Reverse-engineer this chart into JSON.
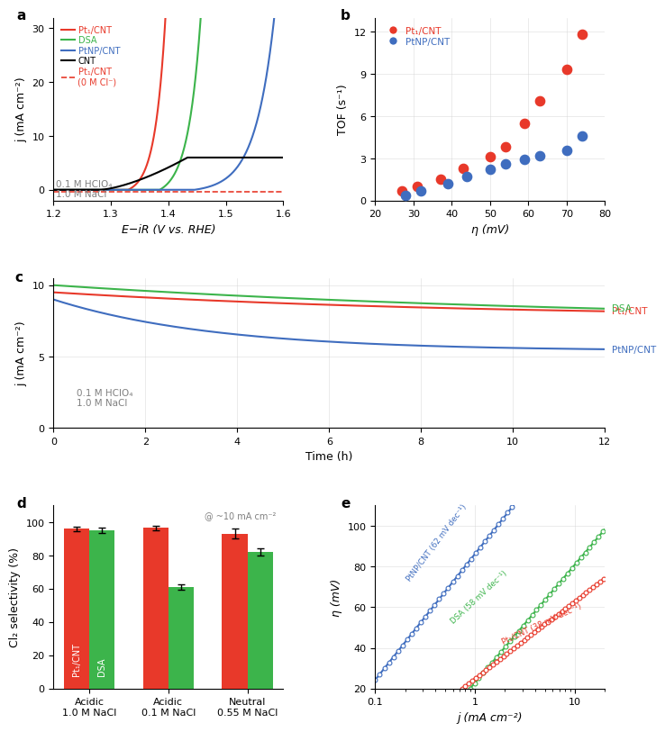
{
  "panel_a": {
    "xlabel": "E−iR (V vs. RHE)",
    "ylabel": "j (mA cm⁻²)",
    "xlim": [
      1.2,
      1.6
    ],
    "ylim": [
      -2,
      32
    ],
    "yticks": [
      0,
      10,
      20,
      30
    ],
    "xticks": [
      1.2,
      1.3,
      1.4,
      1.5,
      1.6
    ],
    "annotation": "0.1 M HClO₄\n1.0 M NaCl",
    "curves": {
      "Pt1CNT": {
        "color": "#e8392a",
        "linestyle": "-",
        "label": "Pt₁/CNT"
      },
      "DSA": {
        "color": "#3cb44b",
        "linestyle": "-",
        "label": "DSA"
      },
      "PtNP_CNT": {
        "color": "#3f6dbf",
        "linestyle": "-",
        "label": "PtNP/CNT"
      },
      "CNT": {
        "color": "#000000",
        "linestyle": "-",
        "label": "CNT"
      },
      "Pt1CNT_0Cl": {
        "color": "#e8392a",
        "linestyle": "--",
        "label": "Pt₁/CNT\n(0 M Cl⁻)"
      }
    }
  },
  "panel_b": {
    "xlabel": "η (mV)",
    "ylabel": "TOF (s⁻¹)",
    "xlim": [
      20,
      80
    ],
    "ylim": [
      0,
      13
    ],
    "yticks": [
      0,
      3,
      6,
      9,
      12
    ],
    "xticks": [
      20,
      30,
      40,
      50,
      60,
      70,
      80
    ],
    "Pt1CNT_x": [
      27,
      31,
      37,
      43,
      50,
      54,
      59,
      63,
      70,
      74
    ],
    "Pt1CNT_y": [
      0.7,
      1.0,
      1.5,
      2.3,
      3.1,
      3.8,
      5.5,
      7.1,
      9.3,
      11.8
    ],
    "PtNP_x": [
      28,
      32,
      39,
      44,
      50,
      54,
      59,
      63,
      70,
      74
    ],
    "PtNP_y": [
      0.4,
      0.7,
      1.2,
      1.7,
      2.2,
      2.6,
      2.9,
      3.2,
      3.6,
      4.6
    ],
    "Pt1CNT_color": "#e8392a",
    "PtNP_color": "#3f6dbf",
    "Pt1CNT_label": "Pt₁/CNT",
    "PtNP_label": "PtNP/CNT"
  },
  "panel_c": {
    "xlabel": "Time (h)",
    "ylabel": "j (mA cm⁻²)",
    "xlim": [
      0,
      12
    ],
    "ylim": [
      0,
      10.5
    ],
    "yticks": [
      0,
      5,
      10
    ],
    "xticks": [
      0,
      2,
      4,
      6,
      8,
      10,
      12
    ],
    "annotation": "0.1 M HClO₄\n1.0 M NaCl",
    "pt1cnt_start": 9.5,
    "pt1cnt_end": 7.7,
    "pt1cnt_tau": 9,
    "dsa_start": 10.0,
    "dsa_end": 7.4,
    "dsa_tau": 12,
    "ptnp_start": 9.0,
    "ptnp_end": 5.4,
    "ptnp_tau": 3.5,
    "labels_right": [
      {
        "text": "Pt₁/CNT",
        "color": "#e8392a"
      },
      {
        "text": "DSA",
        "color": "#3cb44b"
      },
      {
        "text": "PtNP/CNT",
        "color": "#3f6dbf"
      }
    ]
  },
  "panel_d": {
    "ylabel": "Cl₂ selectivity (%)",
    "ylim": [
      0,
      110
    ],
    "yticks": [
      0,
      20,
      40,
      60,
      80,
      100
    ],
    "annotation": "@ ~10 mA cm⁻²",
    "groups": [
      "Acidic\n1.0 M NaCl",
      "Acidic\n0.1 M NaCl",
      "Neutral\n0.55 M NaCl"
    ],
    "Pt1CNT_vals": [
      96.0,
      96.5,
      93.0
    ],
    "Pt1CNT_err": [
      1.5,
      1.5,
      3.0
    ],
    "DSA_vals": [
      95.0,
      61.0,
      82.0
    ],
    "DSA_err": [
      1.5,
      1.5,
      2.0
    ],
    "Pt1CNT_color": "#e8392a",
    "DSA_color": "#3cb44b",
    "Pt1CNT_label": "Pt₁/CNT",
    "DSA_label": "DSA"
  },
  "panel_e": {
    "xlabel": "j (mA cm⁻²)",
    "ylabel": "η (mV)",
    "xlim": [
      0.1,
      20
    ],
    "ylim": [
      20,
      110
    ],
    "yticks": [
      20,
      40,
      60,
      80,
      100
    ],
    "PtNP_color": "#3f6dbf",
    "DSA_color": "#3cb44b",
    "Pt1CNT_color": "#e8392a",
    "PtNP_label": "PtNP/CNT (62 mV dec⁻¹)",
    "DSA_label": "DSA (58 mV dec⁻¹)",
    "Pt1CNT_label": "Pt₁/CNT (38 mV dec⁻¹)",
    "PtNP_slope": 62,
    "PtNP_eta_ref": 40,
    "PtNP_j_ref": 0.18,
    "DSA_slope": 58,
    "DSA_eta_ref": 10,
    "DSA_j_ref": 0.6,
    "Pt1CNT_slope": 38,
    "Pt1CNT_eta_ref": 25,
    "Pt1CNT_j_ref": 1.0
  }
}
